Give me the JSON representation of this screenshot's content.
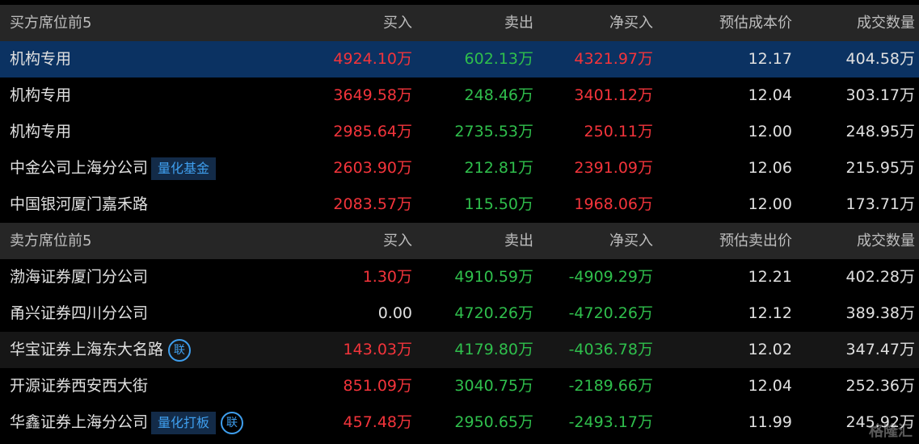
{
  "sections": [
    {
      "headers": [
        "买方席位前5",
        "买入",
        "卖出",
        "净买入",
        "预估成本价",
        "成交数量"
      ],
      "rows": [
        {
          "name": "机构专用",
          "highlight": "selected",
          "cells": [
            "4924.10万",
            "602.13万",
            "4321.97万",
            "12.17",
            "404.58万"
          ]
        },
        {
          "name": "机构专用",
          "cells": [
            "3649.58万",
            "248.46万",
            "3401.12万",
            "12.04",
            "303.17万"
          ]
        },
        {
          "name": "机构专用",
          "cells": [
            "2985.64万",
            "2735.53万",
            "250.11万",
            "12.00",
            "248.95万"
          ]
        },
        {
          "name": "中金公司上海分公司",
          "tag": "量化基金",
          "cells": [
            "2603.90万",
            "212.81万",
            "2391.09万",
            "12.06",
            "215.95万"
          ]
        },
        {
          "name": "中国银河厦门嘉禾路",
          "cells": [
            "2083.57万",
            "115.50万",
            "1968.06万",
            "12.00",
            "173.71万"
          ]
        }
      ]
    },
    {
      "headers": [
        "卖方席位前5",
        "买入",
        "卖出",
        "净买入",
        "预估卖出价",
        "成交数量"
      ],
      "rows": [
        {
          "name": "渤海证券厦门分公司",
          "cells": [
            "1.30万",
            "4910.59万",
            "-4909.29万",
            "12.21",
            "402.28万"
          ]
        },
        {
          "name": "甬兴证券四川分公司",
          "cells": [
            "0.00",
            "4720.26万",
            "-4720.26万",
            "12.12",
            "389.38万"
          ]
        },
        {
          "name": "华宝证券上海东大名路",
          "highlight": "hover",
          "badge": "联",
          "cells": [
            "143.03万",
            "4179.80万",
            "-4036.78万",
            "12.02",
            "347.47万"
          ]
        },
        {
          "name": "开源证券西安西大街",
          "cells": [
            "851.09万",
            "3040.75万",
            "-2189.66万",
            "12.04",
            "252.36万"
          ]
        },
        {
          "name": "华鑫证券上海分公司",
          "tag": "量化打板",
          "badge": "联",
          "cells": [
            "457.48万",
            "2950.65万",
            "-2493.17万",
            "11.99",
            "245.92万"
          ]
        }
      ]
    }
  ],
  "watermark": "格隆汇"
}
